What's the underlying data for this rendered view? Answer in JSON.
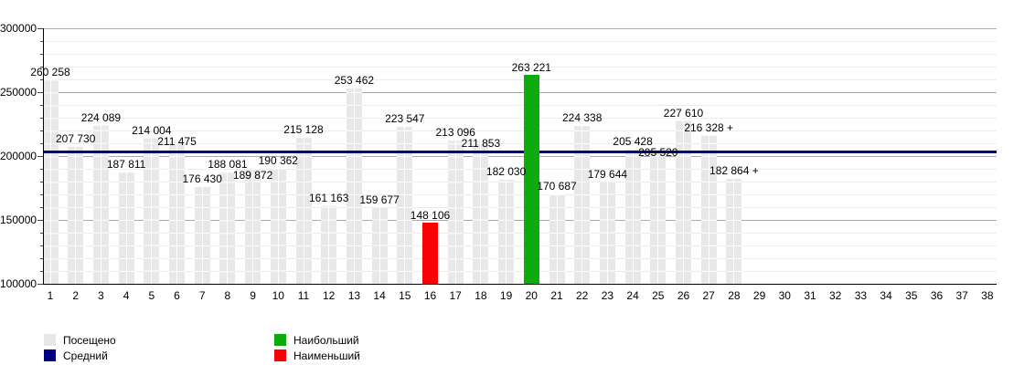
{
  "chart_data": {
    "type": "bar",
    "title": "",
    "xlabel": "",
    "ylabel": "",
    "ylim": [
      100000,
      300000
    ],
    "ytick_labels": [
      "100000",
      "150000",
      "200000",
      "250000",
      "300000"
    ],
    "grid": {
      "minor_step": 10000,
      "major_step": 50000,
      "minor_color": "#ececec",
      "major_color": "#aaaaaa"
    },
    "categories": [
      1,
      2,
      3,
      4,
      5,
      6,
      7,
      8,
      9,
      10,
      11,
      12,
      13,
      14,
      15,
      16,
      17,
      18,
      19,
      20,
      21,
      22,
      23,
      24,
      25,
      26,
      27,
      28,
      29,
      30,
      31,
      32,
      33,
      34,
      35,
      36,
      37,
      38
    ],
    "series": [
      {
        "name": "Посещено",
        "color": "#e8e8e8",
        "values": [
          260258,
          207730,
          224089,
          187811,
          214004,
          211475,
          176430,
          188081,
          189872,
          190362,
          215128,
          161163,
          253462,
          159677,
          223547,
          148106,
          213096,
          211853,
          182030,
          263221,
          170687,
          224338,
          179644,
          205428,
          205520,
          227610,
          216328,
          182864
        ]
      }
    ],
    "bar_labels": [
      "260 258",
      "207 730",
      "224 089",
      "187 811",
      "214 004",
      "211 475",
      "176 430",
      "188 081",
      "189 872",
      "190 362",
      "215 128",
      "161 163",
      "253 462",
      "159 677",
      "223 547",
      "148 106",
      "213 096",
      "211 853",
      "182 030",
      "263 221",
      "170 687",
      "224 338",
      "179 644",
      "205 428",
      "205 520",
      "227 610",
      "216 328 +",
      "182 864 +"
    ],
    "max_bar": {
      "category": 20,
      "value": 263221,
      "color": "#0dab0d"
    },
    "min_bar": {
      "category": 16,
      "value": 148106,
      "color": "#f80303"
    },
    "average_line": {
      "value": 203350,
      "color": "#000080"
    },
    "legend_position": "bottom"
  },
  "legend": {
    "items": [
      {
        "label": "Посещено",
        "color": "#e8e8e8"
      },
      {
        "label": "Средний",
        "color": "#000080"
      },
      {
        "label": "Наибольший",
        "color": "#0dab0d"
      },
      {
        "label": "Наименьший",
        "color": "#f80303"
      }
    ]
  }
}
